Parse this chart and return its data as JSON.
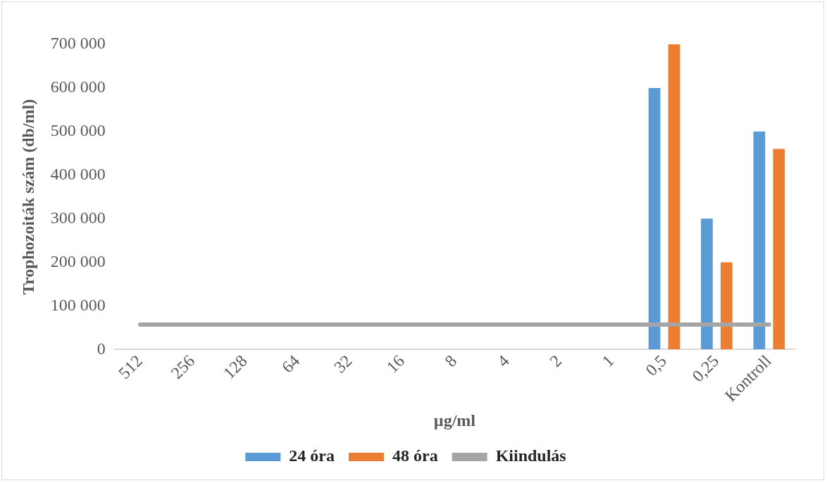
{
  "chart_data": {
    "type": "bar",
    "xlabel": "µg/ml",
    "ylabel": "Trophozoiták szám (db/ml)",
    "categories": [
      "512",
      "256",
      "128",
      "64",
      "32",
      "16",
      "8",
      "4",
      "2",
      "1",
      "0,5",
      "0,25",
      "Kontroll"
    ],
    "series": [
      {
        "name": "24 óra",
        "color": "#5b9bd5",
        "values": [
          0,
          0,
          0,
          0,
          0,
          0,
          0,
          0,
          0,
          0,
          600000,
          300000,
          500000
        ]
      },
      {
        "name": "48 óra",
        "color": "#ed7d31",
        "values": [
          0,
          0,
          0,
          0,
          0,
          0,
          0,
          0,
          0,
          0,
          700000,
          200000,
          460000
        ]
      },
      {
        "name": "Kiindulás",
        "type": "line",
        "color": "#a5a5a5",
        "marker": "none",
        "values": [
          57000,
          57000,
          57000,
          57000,
          57000,
          57000,
          57000,
          57000,
          57000,
          57000,
          57000,
          57000,
          57000
        ]
      }
    ],
    "ylim": [
      0,
      700000
    ],
    "yticks": [
      {
        "value": 0,
        "label": "0"
      },
      {
        "value": 100000,
        "label": "100 000"
      },
      {
        "value": 200000,
        "label": "200 000"
      },
      {
        "value": 300000,
        "label": "300 000"
      },
      {
        "value": 400000,
        "label": "400 000"
      },
      {
        "value": 500000,
        "label": "500 000"
      },
      {
        "value": 600000,
        "label": "600 000"
      },
      {
        "value": 700000,
        "label": "700 000"
      }
    ],
    "grid": false,
    "legend": "bottom"
  }
}
